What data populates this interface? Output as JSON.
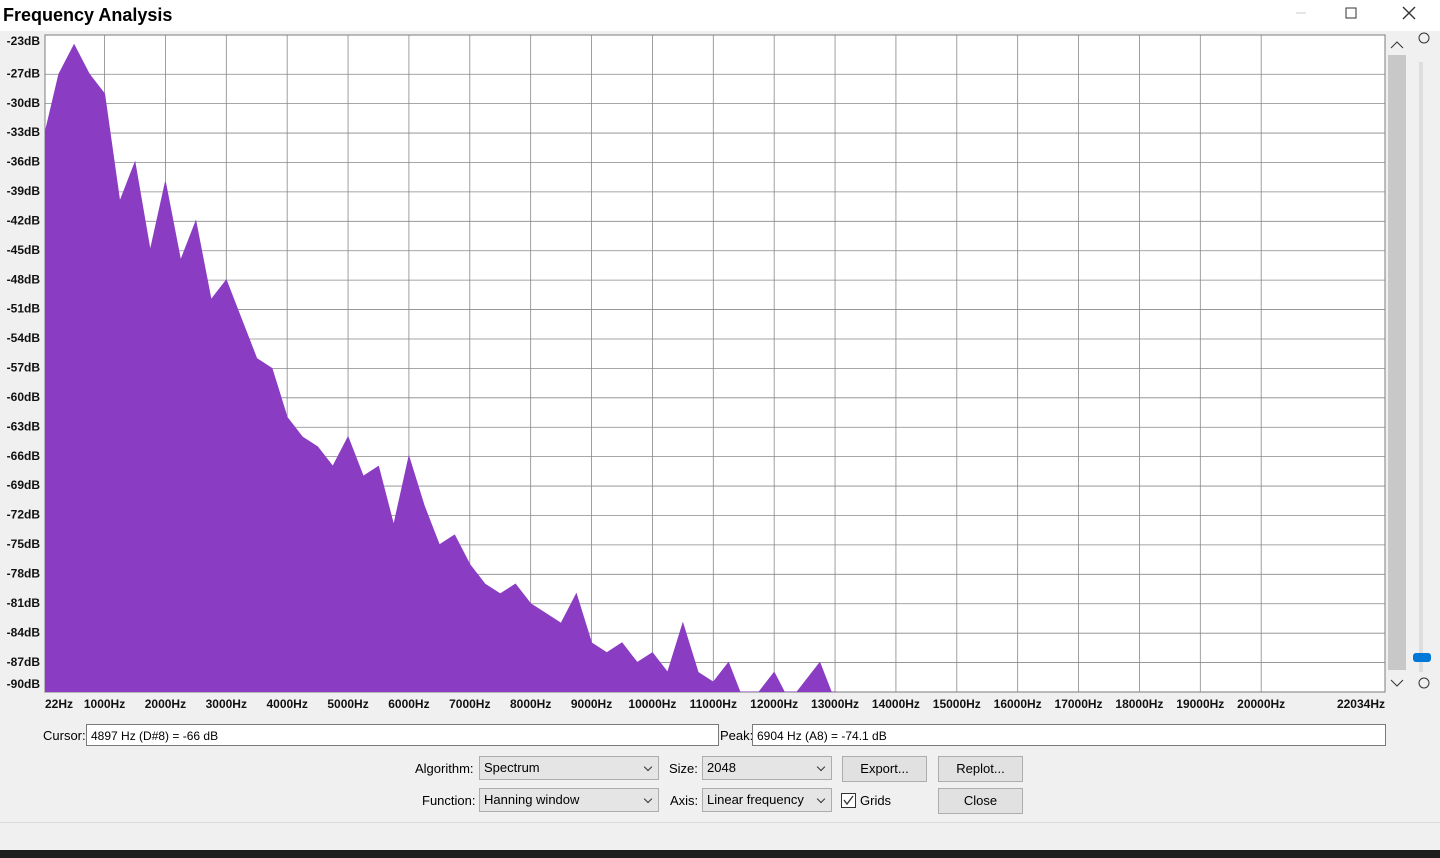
{
  "window": {
    "title": "Frequency Analysis"
  },
  "chart_data": {
    "type": "area",
    "color": "#8a3cc2",
    "grid": true,
    "x": [
      22,
      250,
      500,
      750,
      1000,
      1250,
      1500,
      1750,
      2000,
      2250,
      2500,
      2750,
      3000,
      3250,
      3500,
      3750,
      4000,
      4250,
      4500,
      4750,
      5000,
      5250,
      5500,
      5750,
      6000,
      6250,
      6500,
      6750,
      7000,
      7250,
      7500,
      7750,
      8000,
      8250,
      8500,
      8750,
      9000,
      9250,
      9500,
      9750,
      10000,
      10250,
      10500,
      10750,
      11000,
      11250,
      11500,
      11750,
      12000,
      12250,
      12500,
      12750,
      13000
    ],
    "values": [
      -33,
      -27,
      -24,
      -27,
      -29,
      -40,
      -36,
      -45,
      -38,
      -46,
      -42,
      -50,
      -48,
      -52,
      -56,
      -57,
      -62,
      -64,
      -65,
      -67,
      -64,
      -68,
      -67,
      -73,
      -66,
      -71,
      -75,
      -74,
      -77,
      -79,
      -80,
      -79,
      -81,
      -82,
      -83,
      -80,
      -85,
      -86,
      -85,
      -87,
      -86,
      -88,
      -83,
      -88,
      -89,
      -87,
      -91,
      -90,
      -88,
      -91,
      -89,
      -87,
      -91
    ],
    "xlim": [
      22,
      22034
    ],
    "ylim": [
      -90,
      -23
    ],
    "xticks": [
      {
        "value": 22,
        "label": "22Hz"
      },
      {
        "value": 1000,
        "label": "1000Hz"
      },
      {
        "value": 2000,
        "label": "2000Hz"
      },
      {
        "value": 3000,
        "label": "3000Hz"
      },
      {
        "value": 4000,
        "label": "4000Hz"
      },
      {
        "value": 5000,
        "label": "5000Hz"
      },
      {
        "value": 6000,
        "label": "6000Hz"
      },
      {
        "value": 7000,
        "label": "7000Hz"
      },
      {
        "value": 8000,
        "label": "8000Hz"
      },
      {
        "value": 9000,
        "label": "9000Hz"
      },
      {
        "value": 10000,
        "label": "10000Hz"
      },
      {
        "value": 11000,
        "label": "11000Hz"
      },
      {
        "value": 12000,
        "label": "12000Hz"
      },
      {
        "value": 13000,
        "label": "13000Hz"
      },
      {
        "value": 14000,
        "label": "14000Hz"
      },
      {
        "value": 15000,
        "label": "15000Hz"
      },
      {
        "value": 16000,
        "label": "16000Hz"
      },
      {
        "value": 17000,
        "label": "17000Hz"
      },
      {
        "value": 18000,
        "label": "18000Hz"
      },
      {
        "value": 19000,
        "label": "19000Hz"
      },
      {
        "value": 20000,
        "label": "20000Hz"
      },
      {
        "value": 22034,
        "label": "22034Hz"
      }
    ],
    "yticks": [
      {
        "value": -23,
        "label": "-23dB"
      },
      {
        "value": -27,
        "label": "-27dB"
      },
      {
        "value": -30,
        "label": "-30dB"
      },
      {
        "value": -33,
        "label": "-33dB"
      },
      {
        "value": -36,
        "label": "-36dB"
      },
      {
        "value": -39,
        "label": "-39dB"
      },
      {
        "value": -42,
        "label": "-42dB"
      },
      {
        "value": -45,
        "label": "-45dB"
      },
      {
        "value": -48,
        "label": "-48dB"
      },
      {
        "value": -51,
        "label": "-51dB"
      },
      {
        "value": -54,
        "label": "-54dB"
      },
      {
        "value": -57,
        "label": "-57dB"
      },
      {
        "value": -60,
        "label": "-60dB"
      },
      {
        "value": -63,
        "label": "-63dB"
      },
      {
        "value": -66,
        "label": "-66dB"
      },
      {
        "value": -69,
        "label": "-69dB"
      },
      {
        "value": -72,
        "label": "-72dB"
      },
      {
        "value": -75,
        "label": "-75dB"
      },
      {
        "value": -78,
        "label": "-78dB"
      },
      {
        "value": -81,
        "label": "-81dB"
      },
      {
        "value": -84,
        "label": "-84dB"
      },
      {
        "value": -87,
        "label": "-87dB"
      },
      {
        "value": -90,
        "label": "-90dB"
      }
    ]
  },
  "controls": {
    "cursor_label": "Cursor:",
    "cursor_value": "4897 Hz (D#8) = -66 dB",
    "peak_label": "Peak:",
    "peak_value": "6904 Hz (A8) = -74.1 dB",
    "algorithm_label": "Algorithm:",
    "algorithm": "Spectrum",
    "size_label": "Size:",
    "size": "2048",
    "export": "Export...",
    "replot": "Replot...",
    "function_label": "Function:",
    "function": "Hanning window",
    "axis_label": "Axis:",
    "axis": "Linear frequency",
    "grids": "Grids",
    "close": "Close"
  }
}
